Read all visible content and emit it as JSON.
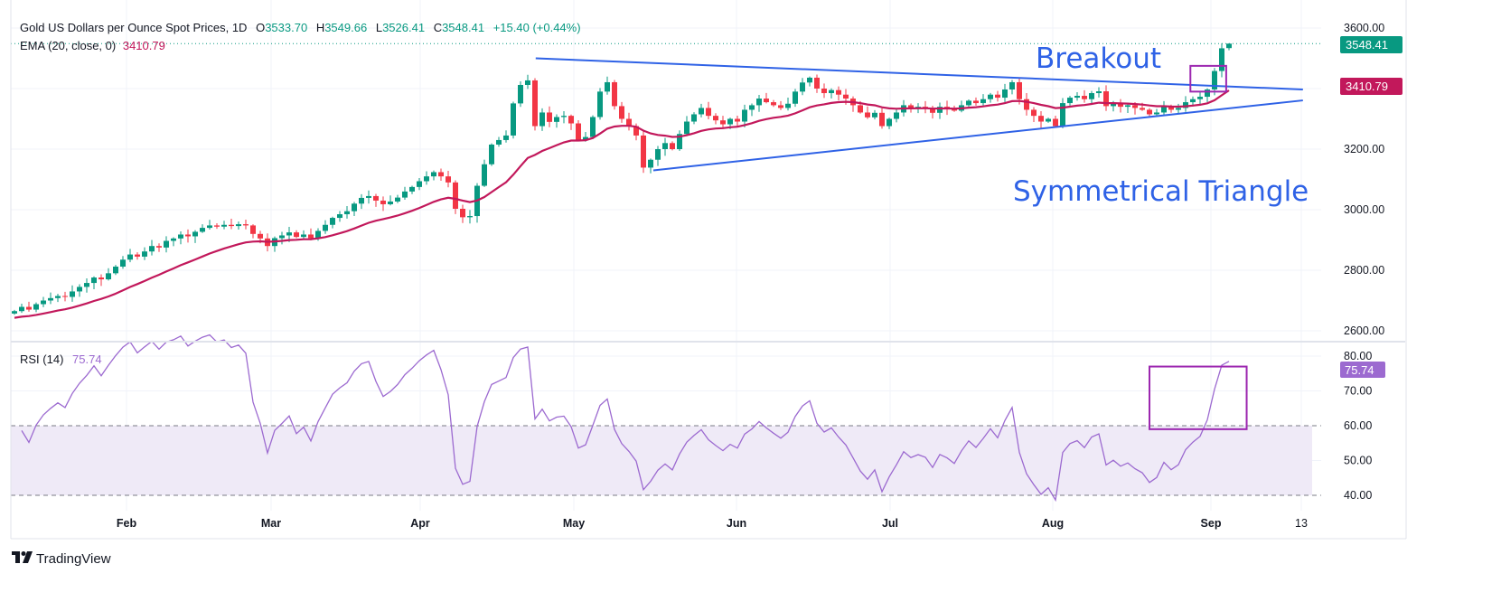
{
  "header": {
    "symbol": "Gold US Dollars per Ounce Spot Prices, 1D",
    "open_label": "O",
    "open": "3533.70",
    "high_label": "H",
    "high": "3549.66",
    "low_label": "L",
    "low": "3526.41",
    "close_label": "C",
    "close": "3548.41",
    "change": "+15.40 (+0.44%)",
    "ema_label": "EMA (20, close, 0)",
    "ema_value": "3410.79",
    "rsi_label": "RSI (14)",
    "rsi_value": "75.74"
  },
  "footer": {
    "brand": "TradingView",
    "logo_icon": "tradingview-logo-icon"
  },
  "colors": {
    "up": "#089981",
    "down": "#f23645",
    "ema": "#c2185b",
    "rsi": "#9c6ad0",
    "trendline": "#2f62e6",
    "box": "#9c27b0",
    "rsi_band": "#efeaf7"
  },
  "chart_data": [
    {
      "type": "candlestick",
      "title": "Gold US Dollars per Ounce Spot Prices, 1D",
      "interval": "1D",
      "y_ticks": [
        "3600.00",
        "3200.00",
        "3000.00",
        "2800.00",
        "2600.00"
      ],
      "ylim": [
        2560,
        3640
      ],
      "x_ticks": [
        "Feb",
        "Mar",
        "Apr",
        "May",
        "Jun",
        "Jul",
        "Aug",
        "Sep",
        "13"
      ],
      "grid": true,
      "close": [
        2665,
        2679,
        2670,
        2688,
        2700,
        2708,
        2715,
        2712,
        2730,
        2745,
        2758,
        2776,
        2770,
        2790,
        2812,
        2835,
        2852,
        2845,
        2862,
        2880,
        2875,
        2897,
        2905,
        2918,
        2912,
        2927,
        2940,
        2948,
        2944,
        2950,
        2946,
        2952,
        2948,
        2920,
        2905,
        2880,
        2906,
        2915,
        2925,
        2910,
        2918,
        2906,
        2930,
        2950,
        2973,
        2985,
        2995,
        3020,
        3039,
        3045,
        3030,
        3018,
        3027,
        3040,
        3060,
        3075,
        3094,
        3110,
        3124,
        3110,
        3090,
        3003,
        2975,
        2979,
        3079,
        3150,
        3215,
        3230,
        3245,
        3351,
        3412,
        3427,
        3276,
        3321,
        3290,
        3306,
        3310,
        3285,
        3230,
        3240,
        3306,
        3390,
        3421,
        3342,
        3300,
        3276,
        3245,
        3139,
        3165,
        3200,
        3220,
        3200,
        3250,
        3291,
        3315,
        3336,
        3310,
        3295,
        3282,
        3300,
        3291,
        3330,
        3345,
        3367,
        3355,
        3345,
        3336,
        3350,
        3390,
        3420,
        3436,
        3400,
        3385,
        3395,
        3380,
        3367,
        3345,
        3321,
        3305,
        3320,
        3276,
        3300,
        3321,
        3345,
        3335,
        3340,
        3336,
        3320,
        3340,
        3335,
        3327,
        3345,
        3360,
        3352,
        3365,
        3380,
        3370,
        3397,
        3421,
        3365,
        3330,
        3310,
        3291,
        3300,
        3276,
        3352,
        3370,
        3376,
        3365,
        3385,
        3391,
        3342,
        3350,
        3340,
        3345,
        3336,
        3330,
        3315,
        3321,
        3340,
        3330,
        3336,
        3355,
        3365,
        3373,
        3397,
        3458,
        3533.01,
        3548.41
      ],
      "last_candle": {
        "open": 3533.7,
        "high": 3549.66,
        "low": 3526.41,
        "close": 3548.41
      },
      "last_price": "3548.41",
      "ema": {
        "period": 20,
        "last": "3410.79"
      },
      "trendlines": [
        {
          "name": "upper",
          "from": {
            "date": "2025-04-22",
            "price": 3500
          },
          "to": {
            "date": "2025-09-19",
            "price": 3397
          }
        },
        {
          "name": "lower",
          "from": {
            "date": "2025-05-15",
            "price": 3130
          },
          "to": {
            "date": "2025-09-19",
            "price": 3361
          }
        }
      ],
      "highlight_box": {
        "from": {
          "date": "2025-08-28",
          "price": 3475
        },
        "to": {
          "date": "2025-09-04",
          "price": 3390
        }
      },
      "annotations": [
        "Breakout",
        "Symmetrical Triangle"
      ]
    },
    {
      "type": "line",
      "title": "RSI (14)",
      "y_ticks": [
        "80.00",
        "70.00",
        "60.00",
        "50.00",
        "40.00"
      ],
      "ylim": [
        36,
        84
      ],
      "band": [
        40,
        60
      ],
      "last": "75.74",
      "highlight_box": {
        "from": {
          "date": "2025-08-20",
          "rsi": 77
        },
        "to": {
          "date": "2025-09-08",
          "rsi": 59
        }
      }
    }
  ]
}
